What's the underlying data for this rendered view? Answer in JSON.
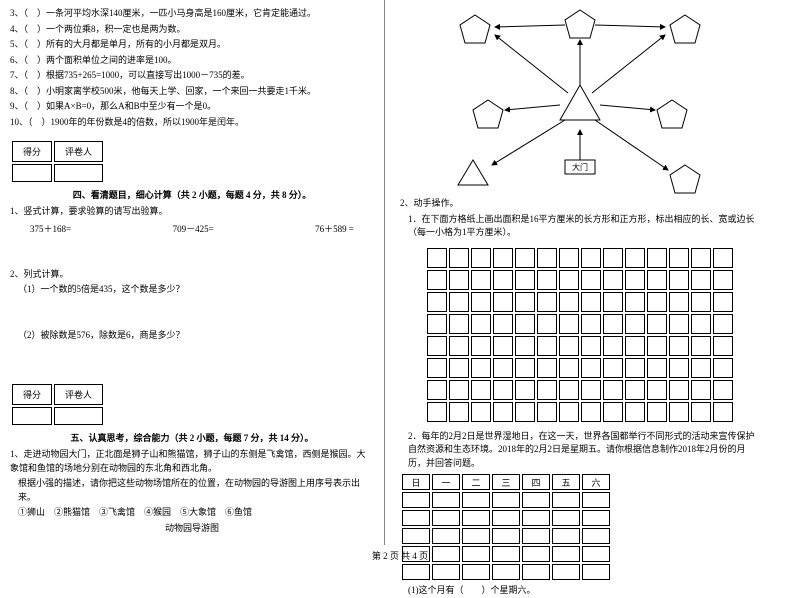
{
  "left": {
    "judg": [
      "3、（　）一条河平均水深140厘米，一匹小马身高是160厘米，它肯定能通过。",
      "4、（　）一个两位乘8，积一定也是两为数。",
      "5、（　）所有的大月都是单月，所有的小月都是双月。",
      "6、（　）两个面积单位之间的进率是100。",
      "7、（　）根据735+265=1000，可以直接写出1000－735的差。",
      "8、（　）小明家离学校500米，他每天上学、回家，一个来回一共要走1千米。",
      "9、（　）如果A×B=0，那么A和B中至少有一个是0。",
      "10、（　）1900年的年份数是4的倍数，所以1900年是闰年。"
    ],
    "box_labels": {
      "score": "得分",
      "grader": "评卷人"
    },
    "sec4_title": "四、看清题目，细心计算（共 2 小题，每题 4 分，共 8 分）。",
    "q1_intro": "1、竖式计算，要求验算的请写出验算。",
    "calc": [
      "375＋168=",
      "709－425=",
      "76＋589 ="
    ],
    "q2_intro": "2、列式计算。",
    "q2_a": "（1）一个数的5倍是435，这个数是多少？",
    "q2_b": "（2）被除数是576，除数是6，商是多少？",
    "sec5_title": "五、认真思考，综合能力（共 2 小题，每题 7 分，共 14 分）。",
    "sec5_p1": "1、走进动物园大门，正北面是狮子山和熊猫馆，狮子山的东侧是飞禽馆，西侧是猴园。大象馆和鱼馆的场地分别在动物园的东北角和西北角。",
    "sec5_p2": "根据小强的描述，请你把这些动物场馆所在的位置，在动物园的导游图上用序号表示出来。",
    "sec5_p3": "①狮山　②熊猫馆　③飞禽馆　④猴园　⑤大象馆　⑥鱼馆",
    "sec5_p4": "动物园导游图"
  },
  "right": {
    "q2_label": "2、动手操作。",
    "q2_1": "1．在下面方格纸上画出面积是16平方厘米的长方形和正方形，标出相应的长、宽或边长（每一小格为1平方厘米）。",
    "q2_2": "2．每年的2月2日是世界湿地日，在这一天，世界各国都举行不同形式的活动来宣传保护自然资源和生态环境。2018年的2月2日是星期五。请你根据信息制作2018年2月份的月历，并回答问题。",
    "weekdays": [
      "日",
      "一",
      "二",
      "三",
      "四",
      "五",
      "六"
    ],
    "q2_2_a": "(1)这个月有（　　）个星期六。"
  },
  "diagram": {
    "center_label": "大门",
    "grid_rows": 8,
    "grid_cols": 14,
    "cal_rows": 5
  },
  "footer": "第 2 页 共 4 页"
}
